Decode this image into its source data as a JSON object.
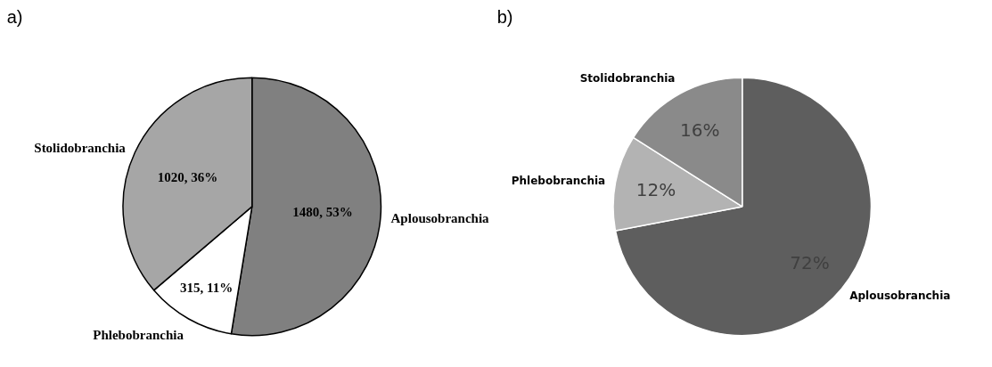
{
  "chart_data": [
    {
      "type": "pie",
      "title": "a)",
      "categories": [
        "Aplousobranchia",
        "Phlebobranchia",
        "Stolidobranchia"
      ],
      "values": [
        1480,
        315,
        1020
      ],
      "colors": [
        "#808080",
        "#ffffff",
        "#a6a6a6"
      ],
      "value_labels": [
        "1480, 53%",
        "315, 11%",
        "1020, 36%"
      ]
    },
    {
      "type": "pie",
      "title": "b)",
      "categories": [
        "Aplousobranchia",
        "Phlebobranchia",
        "Stolidobranchia"
      ],
      "values": [
        72,
        12,
        16
      ],
      "colors": [
        "#5e5e5e",
        "#b3b3b3",
        "#8a8a8a"
      ],
      "value_labels": [
        "72%",
        "12%",
        "16%"
      ]
    }
  ]
}
